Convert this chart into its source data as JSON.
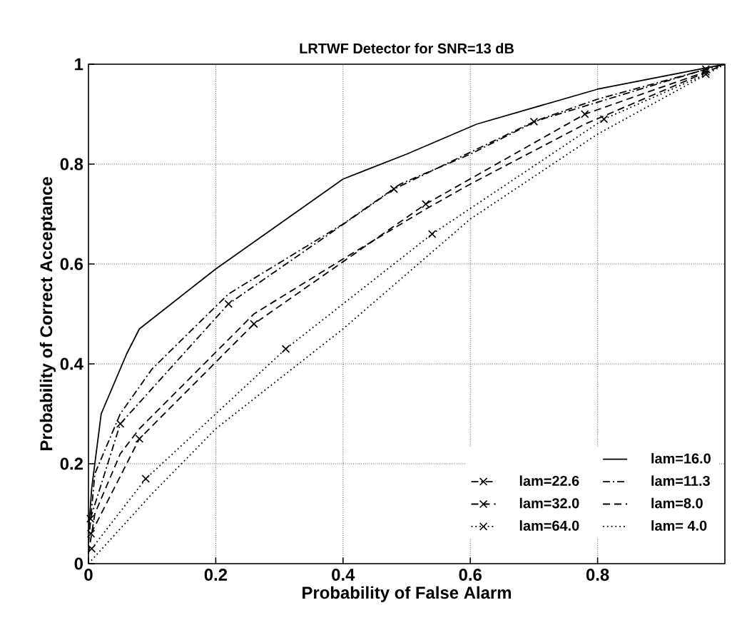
{
  "chart_data": {
    "type": "line",
    "title": "LRTWF Detector for SNR=13 dB",
    "xlabel": "Probability of False Alarm",
    "ylabel": "Probability of Correct Acceptance",
    "xlim": [
      0,
      1
    ],
    "ylim": [
      0,
      1
    ],
    "xticks": [
      0,
      0.2,
      0.4,
      0.6,
      0.8
    ],
    "yticks": [
      0,
      0.2,
      0.4,
      0.6,
      0.8,
      1
    ],
    "grid": true,
    "legend": "bottom right",
    "series": [
      {
        "name": "lam=16.0",
        "color": "#000000",
        "line_style": "solid",
        "marker": "none",
        "x": [
          0,
          0.005,
          0.02,
          0.06,
          0.08,
          0.2,
          0.4,
          0.5,
          0.61,
          0.8,
          1
        ],
        "values": [
          0.06,
          0.15,
          0.3,
          0.42,
          0.47,
          0.59,
          0.77,
          0.82,
          0.88,
          0.95,
          1
        ]
      },
      {
        "name": "lam=22.6",
        "color": "#000000",
        "line_style": "dashdot",
        "marker": "cross",
        "x": [
          0.003,
          0.05,
          0.22,
          0.48,
          0.7,
          0.97
        ],
        "values": [
          0.09,
          0.28,
          0.52,
          0.75,
          0.885,
          0.99
        ]
      },
      {
        "name": "lam=11.3",
        "color": "#000000",
        "line_style": "dashdot",
        "marker": "none",
        "x": [
          0,
          0.01,
          0.05,
          0.1,
          0.22,
          0.4,
          0.49,
          0.6,
          0.71,
          0.8,
          1
        ],
        "values": [
          0.04,
          0.18,
          0.3,
          0.39,
          0.54,
          0.68,
          0.76,
          0.82,
          0.89,
          0.93,
          1
        ]
      },
      {
        "name": "lam=32.0",
        "color": "#000000",
        "line_style": "dashed",
        "marker": "cross",
        "x": [
          0.004,
          0.08,
          0.26,
          0.53,
          0.78,
          0.97
        ],
        "values": [
          0.06,
          0.25,
          0.48,
          0.72,
          0.9,
          0.985
        ]
      },
      {
        "name": "lam=8.0",
        "color": "#000000",
        "line_style": "dashed",
        "marker": "none",
        "x": [
          0,
          0.01,
          0.05,
          0.08,
          0.26,
          0.4,
          0.53,
          0.6,
          0.78,
          1
        ],
        "values": [
          0.02,
          0.1,
          0.22,
          0.27,
          0.5,
          0.61,
          0.71,
          0.76,
          0.88,
          1
        ]
      },
      {
        "name": "lam=64.0",
        "color": "#000000",
        "line_style": "dotted",
        "marker": "cross",
        "x": [
          0.005,
          0.09,
          0.31,
          0.54,
          0.81,
          0.97
        ],
        "values": [
          0.03,
          0.17,
          0.43,
          0.66,
          0.89,
          0.98
        ]
      },
      {
        "name": "lam=  4.0",
        "color": "#000000",
        "line_style": "dotted",
        "marker": "none",
        "x": [
          0,
          0.1,
          0.2,
          0.4,
          0.6,
          0.8,
          1
        ],
        "values": [
          0,
          0.14,
          0.27,
          0.47,
          0.69,
          0.86,
          1
        ]
      }
    ]
  }
}
